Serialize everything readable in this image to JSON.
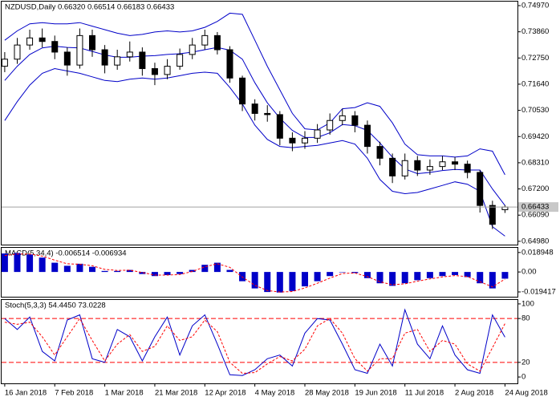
{
  "chart_data": [
    {
      "type": "candlestick",
      "title": "NZDUSD,Daily  0.66320 0.66514 0.66183 0.66433",
      "x": [
        0,
        4,
        8,
        12,
        16,
        20,
        24,
        28,
        32,
        36,
        40,
        44,
        48,
        52,
        56,
        60,
        64,
        68,
        72,
        76,
        80,
        84,
        88,
        92,
        96,
        100,
        104,
        108,
        112,
        116,
        120,
        124,
        128,
        132,
        136,
        140,
        144,
        148,
        152,
        156,
        160
      ],
      "open": [
        0.724,
        0.727,
        0.733,
        0.736,
        0.7345,
        0.73,
        0.7245,
        0.737,
        0.731,
        0.7245,
        0.728,
        0.73,
        0.723,
        0.7205,
        0.724,
        0.729,
        0.733,
        0.737,
        0.731,
        0.719,
        0.708,
        0.704,
        0.7035,
        0.6935,
        0.6915,
        0.6935,
        0.697,
        0.701,
        0.703,
        0.699,
        0.69,
        0.685,
        0.6775,
        0.684,
        0.68,
        0.6815,
        0.6835,
        0.6825,
        0.679,
        0.665,
        0.6632
      ],
      "high": [
        0.73,
        0.736,
        0.7395,
        0.74,
        0.737,
        0.732,
        0.74,
        0.7395,
        0.733,
        0.731,
        0.7345,
        0.732,
        0.7255,
        0.727,
        0.7315,
        0.736,
        0.7395,
        0.7385,
        0.7325,
        0.72,
        0.71,
        0.7075,
        0.705,
        0.696,
        0.6965,
        0.6995,
        0.704,
        0.706,
        0.705,
        0.701,
        0.692,
        0.687,
        0.687,
        0.686,
        0.6845,
        0.686,
        0.6855,
        0.684,
        0.68,
        0.667,
        0.66514
      ],
      "low": [
        0.7215,
        0.725,
        0.731,
        0.732,
        0.727,
        0.72,
        0.723,
        0.728,
        0.721,
        0.7225,
        0.726,
        0.72,
        0.716,
        0.7185,
        0.7225,
        0.727,
        0.731,
        0.729,
        0.717,
        0.705,
        0.701,
        0.7005,
        0.6905,
        0.688,
        0.689,
        0.6915,
        0.695,
        0.699,
        0.696,
        0.687,
        0.682,
        0.6745,
        0.676,
        0.6775,
        0.678,
        0.68,
        0.68,
        0.6765,
        0.662,
        0.655,
        0.66183
      ],
      "close": [
        0.727,
        0.733,
        0.736,
        0.7345,
        0.73,
        0.7245,
        0.737,
        0.731,
        0.7245,
        0.728,
        0.73,
        0.723,
        0.7205,
        0.724,
        0.729,
        0.733,
        0.737,
        0.731,
        0.719,
        0.708,
        0.704,
        0.7035,
        0.6935,
        0.6915,
        0.6935,
        0.697,
        0.701,
        0.703,
        0.699,
        0.69,
        0.685,
        0.6775,
        0.684,
        0.68,
        0.6815,
        0.6835,
        0.6825,
        0.679,
        0.665,
        0.657,
        0.66433
      ],
      "up_color": "#ffffff",
      "down_color": "#000000",
      "bands": {
        "color": "#0000c8",
        "upper": [
          0.735,
          0.739,
          0.742,
          0.7425,
          0.742,
          0.742,
          0.7425,
          0.741,
          0.7395,
          0.738,
          0.737,
          0.7375,
          0.7385,
          0.739,
          0.7385,
          0.739,
          0.7405,
          0.743,
          0.7465,
          0.746,
          0.735,
          0.724,
          0.714,
          0.704,
          0.6975,
          0.697,
          0.7,
          0.706,
          0.7065,
          0.7085,
          0.707,
          0.7,
          0.691,
          0.6865,
          0.686,
          0.686,
          0.6855,
          0.686,
          0.689,
          0.688,
          0.678
        ],
        "middle": [
          0.718,
          0.724,
          0.729,
          0.7318,
          0.7325,
          0.732,
          0.7318,
          0.7303,
          0.7288,
          0.7278,
          0.7278,
          0.7283,
          0.7285,
          0.729,
          0.7293,
          0.73,
          0.731,
          0.732,
          0.7308,
          0.727,
          0.717,
          0.7085,
          0.702,
          0.6968,
          0.6938,
          0.6938,
          0.6958,
          0.6993,
          0.6988,
          0.6968,
          0.6915,
          0.6855,
          0.6805,
          0.6785,
          0.679,
          0.6798,
          0.6803,
          0.68,
          0.68,
          0.672,
          0.665
        ],
        "lower": [
          0.701,
          0.709,
          0.716,
          0.721,
          0.723,
          0.722,
          0.721,
          0.7195,
          0.718,
          0.7175,
          0.7185,
          0.719,
          0.7185,
          0.719,
          0.72,
          0.721,
          0.7215,
          0.721,
          0.715,
          0.708,
          0.699,
          0.693,
          0.69,
          0.6895,
          0.69,
          0.6905,
          0.6915,
          0.6925,
          0.691,
          0.685,
          0.676,
          0.671,
          0.67,
          0.6705,
          0.672,
          0.6735,
          0.675,
          0.674,
          0.671,
          0.656,
          0.652
        ]
      },
      "xlim": [
        -1,
        164
      ],
      "ylim": [
        0.6484,
        0.7514
      ],
      "yticks": [
        {
          "value": 0.7497,
          "label": "0.74970"
        },
        {
          "value": 0.7386,
          "label": "0.73860"
        },
        {
          "value": 0.7275,
          "label": "0.72750"
        },
        {
          "value": 0.7164,
          "label": "0.71640"
        },
        {
          "value": 0.7053,
          "label": "0.70530"
        },
        {
          "value": 0.6942,
          "label": "0.69420"
        },
        {
          "value": 0.6831,
          "label": "0.68310"
        },
        {
          "value": 0.672,
          "label": "0.67200"
        },
        {
          "value": 0.6609,
          "label": "0.66090"
        },
        {
          "value": 0.6498,
          "label": "0.64980"
        }
      ]
    },
    {
      "type": "macd",
      "title": "MACD(5,34,4) -0.006514 -0.006934",
      "color": "#0000c8",
      "signal_color": "#ff0000",
      "values": [
        0.018,
        0.0185,
        0.017,
        0.014,
        0.009,
        0.006,
        0.008,
        0.005,
        0.001,
        0.001,
        0.002,
        -0.002,
        -0.004,
        -0.003,
        -0.002,
        0.002,
        0.007,
        0.009,
        0.002,
        -0.009,
        -0.016,
        -0.0195,
        -0.02,
        -0.0185,
        -0.014,
        -0.009,
        -0.004,
        0.0,
        -0.001,
        -0.006,
        -0.011,
        -0.0135,
        -0.011,
        -0.008,
        -0.006,
        -0.004,
        -0.003,
        -0.005,
        -0.011,
        -0.016,
        -0.006514
      ],
      "signal": [
        0.016,
        0.0175,
        0.0175,
        0.0155,
        0.0115,
        0.008,
        0.0075,
        0.006,
        0.0025,
        0.0015,
        0.0018,
        -0.0005,
        -0.003,
        -0.003,
        -0.0025,
        0.0005,
        0.005,
        0.008,
        0.0045,
        -0.005,
        -0.013,
        -0.018,
        -0.0195,
        -0.019,
        -0.0155,
        -0.011,
        -0.006,
        -0.0015,
        -0.001,
        -0.0045,
        -0.0095,
        -0.0125,
        -0.0115,
        -0.009,
        -0.0068,
        -0.0048,
        -0.0035,
        -0.0045,
        -0.0095,
        -0.0145,
        -0.006934
      ],
      "ylim": [
        -0.0241,
        0.0235
      ],
      "yticks": [
        0.018948,
        {
          "value": 0,
          "label": "0.00"
        },
        -0.019417
      ]
    },
    {
      "type": "stochastic",
      "title": "Stoch(5,3,3) 54.4450 73.0228",
      "color": "#0000c8",
      "signal_color": "#ff0000",
      "main": [
        80,
        65,
        82,
        35,
        22,
        78,
        85,
        25,
        20,
        65,
        55,
        22,
        55,
        82,
        30,
        70,
        85,
        45,
        3,
        2,
        10,
        25,
        30,
        15,
        60,
        80,
        78,
        45,
        10,
        5,
        45,
        15,
        92,
        45,
        25,
        70,
        30,
        10,
        5,
        85,
        54.445
      ],
      "signal": [
        75,
        72,
        75,
        55,
        30,
        55,
        80,
        50,
        22,
        45,
        58,
        35,
        42,
        70,
        50,
        55,
        78,
        62,
        20,
        5,
        6,
        18,
        28,
        22,
        38,
        70,
        80,
        60,
        25,
        8,
        25,
        25,
        60,
        65,
        35,
        50,
        45,
        18,
        8,
        40,
        73.0228
      ],
      "levels": [
        80,
        20
      ],
      "ylim": [
        -8.7,
        105.4
      ],
      "yticks": [
        100,
        80,
        20,
        0
      ],
      "xticks": [
        {
          "value": 0,
          "label": "16 Jan 2018"
        },
        {
          "value": 16,
          "label": "7 Feb 2018"
        },
        {
          "value": 32,
          "label": "1 Mar 2018"
        },
        {
          "value": 48,
          "label": "21 Mar 2018"
        },
        {
          "value": 64,
          "label": "12 Apr 2018"
        },
        {
          "value": 80,
          "label": "4 May 2018"
        },
        {
          "value": 96,
          "label": "28 May 2018"
        },
        {
          "value": 112,
          "label": "19 Jun 2018"
        },
        {
          "value": 128,
          "label": "11 Jul 2018"
        },
        {
          "value": 144,
          "label": "2 Aug 2018"
        },
        {
          "value": 160,
          "label": "24 Aug 2018"
        }
      ]
    }
  ]
}
